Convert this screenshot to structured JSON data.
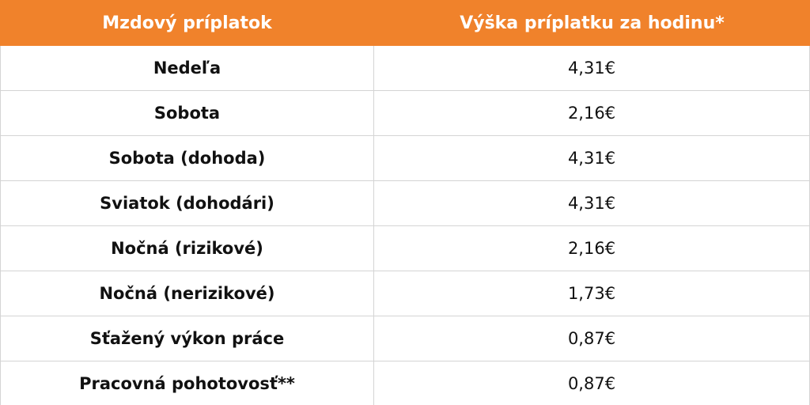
{
  "colors": {
    "header_background": "#f0822b",
    "header_text": "#ffffff",
    "grid_lines": "#d4d4d4",
    "body_text": "#111111"
  },
  "table": {
    "headers": [
      "Mzdový príplatok",
      "Výška príplatku za hodinu*"
    ],
    "rows": [
      [
        "Nedeľa",
        "4,31€"
      ],
      [
        "Sobota",
        "2,16€"
      ],
      [
        "Sobota (dohoda)",
        "4,31€"
      ],
      [
        "Sviatok (dohodári)",
        "4,31€"
      ],
      [
        "Nočná (rizikové)",
        "2,16€"
      ],
      [
        "Nočná (nerizikové)",
        "1,73€"
      ],
      [
        "Sťažený výkon práce",
        "0,87€"
      ],
      [
        "Pracovná pohotovosť**",
        "0,87€"
      ]
    ]
  }
}
